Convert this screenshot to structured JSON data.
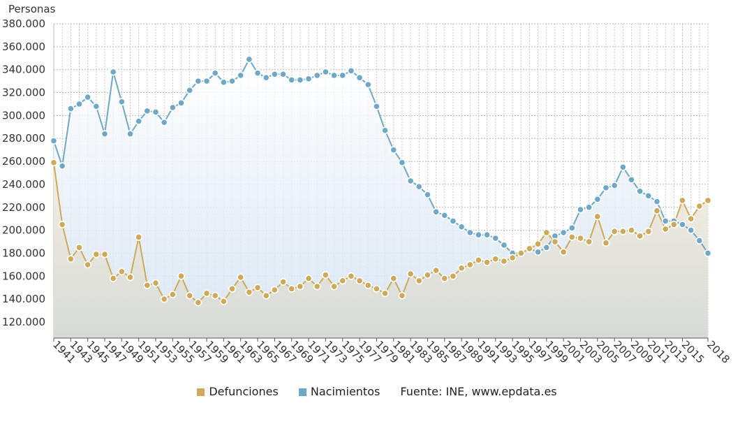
{
  "chart_data": {
    "type": "line",
    "ylabel": "Personas",
    "ylim": [
      106000,
      380000
    ],
    "yticks": [
      {
        "value": 380000,
        "label": "380.000"
      },
      {
        "value": 360000,
        "label": "360.000"
      },
      {
        "value": 340000,
        "label": "340.000"
      },
      {
        "value": 320000,
        "label": "320.000"
      },
      {
        "value": 300000,
        "label": "300.000"
      },
      {
        "value": 280000,
        "label": "280.000"
      },
      {
        "value": 260000,
        "label": "260.000"
      },
      {
        "value": 240000,
        "label": "240.000"
      },
      {
        "value": 220000,
        "label": "220.000"
      },
      {
        "value": 200000,
        "label": "200.000"
      },
      {
        "value": 180000,
        "label": "180.000"
      },
      {
        "value": 160000,
        "label": "160.000"
      },
      {
        "value": 140000,
        "label": "140.000"
      },
      {
        "value": 120000,
        "label": "120.000"
      }
    ],
    "x": [
      1941,
      1942,
      1943,
      1944,
      1945,
      1946,
      1947,
      1948,
      1949,
      1950,
      1951,
      1952,
      1953,
      1954,
      1955,
      1956,
      1957,
      1958,
      1959,
      1960,
      1961,
      1962,
      1963,
      1964,
      1965,
      1966,
      1967,
      1968,
      1969,
      1970,
      1971,
      1972,
      1973,
      1974,
      1975,
      1976,
      1977,
      1978,
      1979,
      1980,
      1981,
      1982,
      1983,
      1984,
      1985,
      1986,
      1987,
      1988,
      1989,
      1990,
      1991,
      1992,
      1993,
      1994,
      1995,
      1996,
      1997,
      1998,
      1999,
      2000,
      2001,
      2002,
      2003,
      2004,
      2005,
      2006,
      2007,
      2008,
      2009,
      2010,
      2011,
      2012,
      2013,
      2014,
      2015,
      2016,
      2017,
      2018
    ],
    "xtick_labels": [
      "1941",
      "1943",
      "1945",
      "1947",
      "1949",
      "1951",
      "1953",
      "1955",
      "1957",
      "1959",
      "1961",
      "1963",
      "1965",
      "1967",
      "1969",
      "1971",
      "1973",
      "1975",
      "1977",
      "1979",
      "1981",
      "1983",
      "1985",
      "1987",
      "1989",
      "1991",
      "1993",
      "1995",
      "1997",
      "1999",
      "2001",
      "2003",
      "2005",
      "2007",
      "2009",
      "2011",
      "2013",
      "2015",
      "2018"
    ],
    "series": [
      {
        "name": "Nacimientos",
        "color": "#6fa7c7",
        "values": [
          278000,
          256000,
          306000,
          310000,
          316000,
          308000,
          284000,
          338000,
          312000,
          284000,
          295000,
          304000,
          303000,
          294000,
          307000,
          311000,
          322000,
          330000,
          330000,
          337000,
          329000,
          330000,
          335000,
          349000,
          337000,
          333000,
          336000,
          336000,
          331000,
          331000,
          332000,
          335000,
          338000,
          335000,
          335000,
          339000,
          333000,
          327000,
          308000,
          287000,
          270000,
          259000,
          243000,
          238000,
          231000,
          216000,
          213000,
          208000,
          203000,
          198000,
          196000,
          196000,
          193000,
          187000,
          180000,
          180000,
          184000,
          181000,
          185000,
          195000,
          198000,
          202000,
          218000,
          220000,
          227000,
          237000,
          239000,
          255000,
          244000,
          234000,
          230000,
          225000,
          208000,
          208000,
          205000,
          200000,
          191000,
          180000
        ]
      },
      {
        "name": "Defunciones",
        "color": "#cfa95a",
        "values": [
          259000,
          205000,
          175000,
          185000,
          170000,
          179000,
          179000,
          158000,
          164000,
          159000,
          194000,
          152000,
          154000,
          140000,
          144000,
          160000,
          143000,
          137000,
          145000,
          143000,
          138000,
          149000,
          159000,
          146000,
          150000,
          143000,
          148000,
          155000,
          149000,
          151000,
          158000,
          151000,
          161000,
          151000,
          156000,
          160000,
          156000,
          152000,
          149000,
          145000,
          158000,
          143000,
          162000,
          156000,
          161000,
          165000,
          158000,
          160000,
          167000,
          170000,
          174000,
          172000,
          175000,
          173000,
          176000,
          180000,
          184000,
          188000,
          198000,
          190000,
          181000,
          194000,
          193000,
          190000,
          212000,
          189000,
          199000,
          199000,
          200000,
          195000,
          199000,
          217000,
          201000,
          205000,
          226000,
          210000,
          221000,
          226000
        ]
      }
    ],
    "legend": [
      {
        "label": "Defunciones",
        "color": "#cfa95a"
      },
      {
        "label": "Nacimientos",
        "color": "#6fa7c7"
      }
    ],
    "source": "Fuente: INE, www.epdata.es",
    "grid": true,
    "legend_placement": "bottom-center"
  }
}
